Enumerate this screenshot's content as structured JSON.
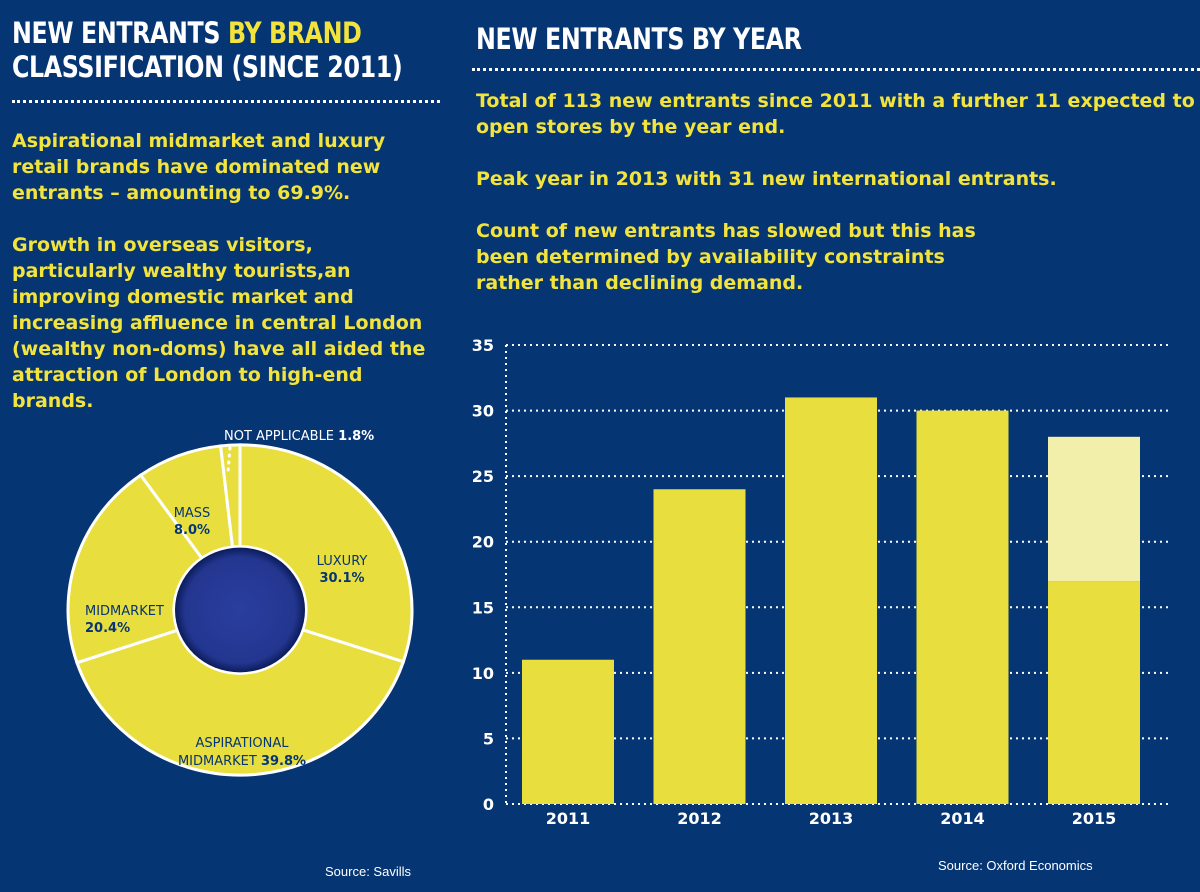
{
  "left": {
    "title_part1": "NEW ENTRANTS ",
    "title_highlight": "BY BRAND",
    "title_line2": "CLASSIFICATION (SINCE 2011)",
    "para1": "Aspirational midmarket and luxury retail brands have dominated new entrants – amounting to 69.9%.",
    "para2": "Growth in overseas visitors, particularly wealthy tourists,an improving domestic market and increasing affluence in central London (wealthy non-doms) have all aided the attraction of London to high-end brands.",
    "source": "Source: Savills"
  },
  "right": {
    "title": "NEW ENTRANTS BY YEAR",
    "para1": "Total of 113 new entrants since 2011 with a further 11 expected to open stores by the year end.",
    "para2": "Peak year in 2013 with 31 new international entrants.",
    "para3": "Count of new entrants has slowed but this has been determined by availability constraints rather than declining demand.",
    "source": "Source: Oxford Economics"
  },
  "colors": {
    "background": "#063574",
    "yellow": "#e8df3f",
    "pale_yellow": "#f2efaa",
    "donut_hole": "#23368f",
    "text_yellow": "#f2e43c",
    "white": "#ffffff"
  },
  "chart_data": [
    {
      "type": "pie",
      "variant": "donut",
      "title": "NEW ENTRANTS BY BRAND CLASSIFICATION (SINCE 2011)",
      "slices": [
        {
          "label": "LUXURY",
          "value": 30.1,
          "value_label": "30.1%"
        },
        {
          "label": "ASPIRATIONAL MIDMARKET",
          "value": 39.8,
          "value_label": "39.8%"
        },
        {
          "label": "MIDMARKET",
          "value": 20.4,
          "value_label": "20.4%"
        },
        {
          "label": "MASS",
          "value": 8.0,
          "value_label": "8.0%"
        },
        {
          "label": "NOT APPLICABLE",
          "value": 1.8,
          "value_label": "1.8%"
        }
      ]
    },
    {
      "type": "bar",
      "stacked": true,
      "title": "NEW ENTRANTS BY YEAR",
      "categories": [
        "2011",
        "2012",
        "2013",
        "2014",
        "2015"
      ],
      "series": [
        {
          "values": [
            11,
            24,
            31,
            30,
            17
          ]
        },
        {
          "values": [
            0,
            0,
            0,
            0,
            11
          ]
        }
      ],
      "ylim": [
        0,
        35
      ],
      "yticks": [
        0,
        5,
        10,
        15,
        20,
        25,
        30,
        35
      ],
      "grid": true
    }
  ]
}
